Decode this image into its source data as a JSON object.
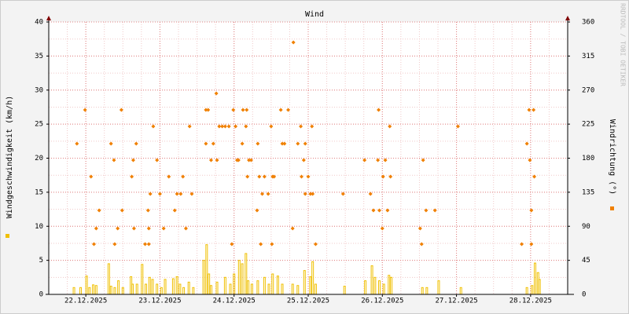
{
  "chart_data": {
    "type": "combo",
    "title": "Wind",
    "side_text": "RRDTOOL / TOBI OETIKER",
    "y_label": "Windgeschwindigkeit (km/h)",
    "y2_label": "Windrichtung (°)",
    "xlim": [
      21.5,
      28.5
    ],
    "xticks": [
      {
        "value": 22,
        "label": "22.12.2025"
      },
      {
        "value": 23,
        "label": "23.12.2025"
      },
      {
        "value": 24,
        "label": "24.12.2025"
      },
      {
        "value": 25,
        "label": "25.12.2025"
      },
      {
        "value": 26,
        "label": "26.12.2025"
      },
      {
        "value": 27,
        "label": "27.12.2025"
      },
      {
        "value": 28,
        "label": "28.12.2025"
      }
    ],
    "ylim": [
      0,
      40
    ],
    "yticks": [
      0,
      5,
      10,
      15,
      20,
      25,
      30,
      35,
      40
    ],
    "y2lim": [
      0,
      360
    ],
    "y2ticks": [
      0,
      45,
      90,
      135,
      180,
      225,
      270,
      315,
      360
    ],
    "grid": true,
    "series": [
      {
        "color": "#f0c000",
        "x": [
          21.84,
          21.93,
          22.01,
          22.05,
          22.1,
          22.14,
          22.31,
          22.34,
          22.39,
          22.44,
          22.5,
          22.61,
          22.63,
          22.69,
          22.76,
          22.81,
          22.86,
          22.9,
          22.96,
          23.02,
          23.07,
          23.18,
          23.23,
          23.27,
          23.32,
          23.39,
          23.45,
          23.59,
          23.63,
          23.66,
          23.69,
          23.77,
          23.88,
          23.95,
          24.0,
          24.07,
          24.11,
          24.16,
          24.19,
          24.24,
          24.32,
          24.41,
          24.47,
          24.52,
          24.59,
          24.65,
          24.79,
          24.86,
          24.95,
          25.03,
          25.06,
          25.1,
          25.49,
          25.77,
          25.86,
          25.9,
          25.96,
          26.02,
          26.09,
          26.12,
          26.54,
          26.6,
          26.76,
          27.06,
          27.95,
          28.02,
          28.06,
          28.1,
          28.12
        ],
        "values": [
          1,
          1,
          2.7,
          1,
          1.4,
          1.3,
          4.5,
          1.2,
          1,
          2,
          1,
          2.6,
          1.5,
          1.5,
          4.4,
          1.5,
          2.5,
          2.2,
          1.5,
          1,
          2.2,
          2.3,
          2.6,
          1.5,
          1,
          1.8,
          1,
          5,
          7.3,
          3,
          1.3,
          1.8,
          2.5,
          1.5,
          3,
          5,
          4.5,
          6,
          2,
          1.5,
          2,
          2.5,
          1.5,
          3,
          2.7,
          1.5,
          1.5,
          1.3,
          3.5,
          2.6,
          4.8,
          1.5,
          1.2,
          2,
          4.2,
          2.5,
          2,
          1.5,
          2.8,
          2.5,
          1,
          1,
          2,
          1,
          1,
          1.3,
          4.6,
          3.2,
          2.2
        ]
      },
      {
        "color": "#f08000",
        "axis": "y2",
        "x": [
          21.88,
          21.99,
          22.07,
          22.11,
          22.14,
          22.18,
          22.34,
          22.38,
          22.39,
          22.43,
          22.48,
          22.49,
          22.62,
          22.64,
          22.65,
          22.68,
          22.8,
          22.84,
          22.85,
          22.85,
          22.87,
          22.91,
          22.96,
          23.0,
          23.05,
          23.12,
          23.2,
          23.23,
          23.28,
          23.31,
          23.35,
          23.4,
          23.43,
          23.62,
          23.65,
          23.62,
          23.69,
          23.72,
          23.76,
          23.77,
          23.8,
          23.84,
          23.88,
          23.93,
          23.97,
          23.99,
          24.02,
          24.04,
          24.06,
          24.11,
          24.12,
          24.16,
          24.17,
          24.18,
          24.2,
          24.23,
          24.31,
          24.32,
          24.34,
          24.36,
          24.38,
          24.41,
          24.46,
          24.5,
          24.51,
          24.52,
          24.54,
          24.63,
          24.65,
          24.68,
          24.73,
          24.79,
          24.8,
          24.86,
          24.9,
          24.91,
          24.94,
          24.96,
          24.96,
          25.0,
          25.03,
          25.05,
          25.06,
          25.1,
          25.47,
          25.76,
          25.84,
          25.88,
          25.94,
          25.95,
          25.96,
          26.0,
          26.01,
          26.04,
          26.07,
          26.1,
          26.11,
          26.51,
          26.53,
          26.55,
          26.59,
          26.71,
          27.02,
          27.88,
          27.95,
          27.98,
          27.99,
          28.01,
          28.01,
          28.04,
          28.05
        ],
        "values": [
          199.2,
          243.8,
          155.6,
          66.4,
          87.2,
          111.0,
          199.2,
          177.4,
          66.4,
          87.2,
          243.8,
          111.0,
          155.6,
          177.4,
          87.2,
          199.2,
          66.4,
          111.0,
          87.2,
          66.4,
          132.8,
          222.0,
          177.4,
          132.8,
          87.2,
          155.6,
          111.0,
          132.8,
          132.8,
          155.6,
          87.2,
          222.0,
          132.8,
          243.8,
          243.8,
          199.2,
          177.4,
          199.2,
          265.6,
          177.4,
          222.0,
          222.0,
          222.0,
          222.0,
          66.4,
          243.8,
          222.0,
          177.4,
          177.4,
          199.2,
          243.8,
          222.0,
          243.8,
          155.6,
          177.4,
          177.4,
          111.0,
          199.2,
          155.6,
          66.4,
          132.8,
          155.6,
          132.8,
          222.0,
          66.4,
          155.6,
          155.6,
          243.8,
          199.2,
          199.2,
          243.8,
          87.2,
          333.0,
          199.2,
          222.0,
          155.6,
          177.4,
          199.2,
          132.8,
          155.6,
          132.8,
          222.0,
          132.8,
          66.4,
          132.8,
          177.4,
          132.8,
          111.0,
          177.4,
          243.8,
          111.0,
          87.2,
          155.6,
          177.4,
          111.0,
          222.0,
          155.6,
          87.2,
          66.4,
          177.4,
          111.0,
          111.0,
          222.0,
          66.4,
          199.2,
          243.8,
          177.4,
          111.0,
          66.4,
          243.8,
          155.6
        ]
      }
    ]
  }
}
